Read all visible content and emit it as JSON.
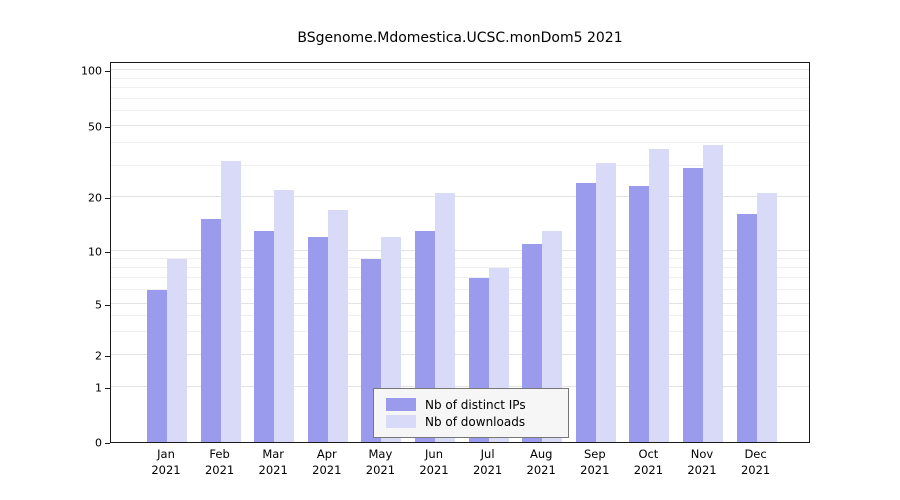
{
  "chart_data": {
    "type": "bar",
    "title": "BSgenome.Mdomestica.UCSC.monDom5 2021",
    "year": "2021",
    "categories": [
      "Jan",
      "Feb",
      "Mar",
      "Apr",
      "May",
      "Jun",
      "Jul",
      "Aug",
      "Sep",
      "Oct",
      "Nov",
      "Dec"
    ],
    "series": [
      {
        "name": "Nb of distinct IPs",
        "color": "#9b9bee",
        "values": [
          6,
          15,
          13,
          12,
          9,
          13,
          7,
          11,
          24,
          23,
          29,
          16
        ]
      },
      {
        "name": "Nb of downloads",
        "color": "#d9d9f8",
        "values": [
          9,
          32,
          22,
          17,
          12,
          21,
          8,
          13,
          31,
          37,
          39,
          21
        ]
      }
    ],
    "y_axis": {
      "scale": "pseudo-log",
      "ticks": [
        0,
        1,
        2,
        5,
        10,
        20,
        50,
        100
      ],
      "minor_gridlines": [
        3,
        4,
        6,
        7,
        8,
        9,
        30,
        40,
        60,
        70,
        80,
        90
      ],
      "ylim": [
        0,
        100
      ]
    },
    "grid": true,
    "legend_position": "bottom-center",
    "background": "#ffffff"
  }
}
